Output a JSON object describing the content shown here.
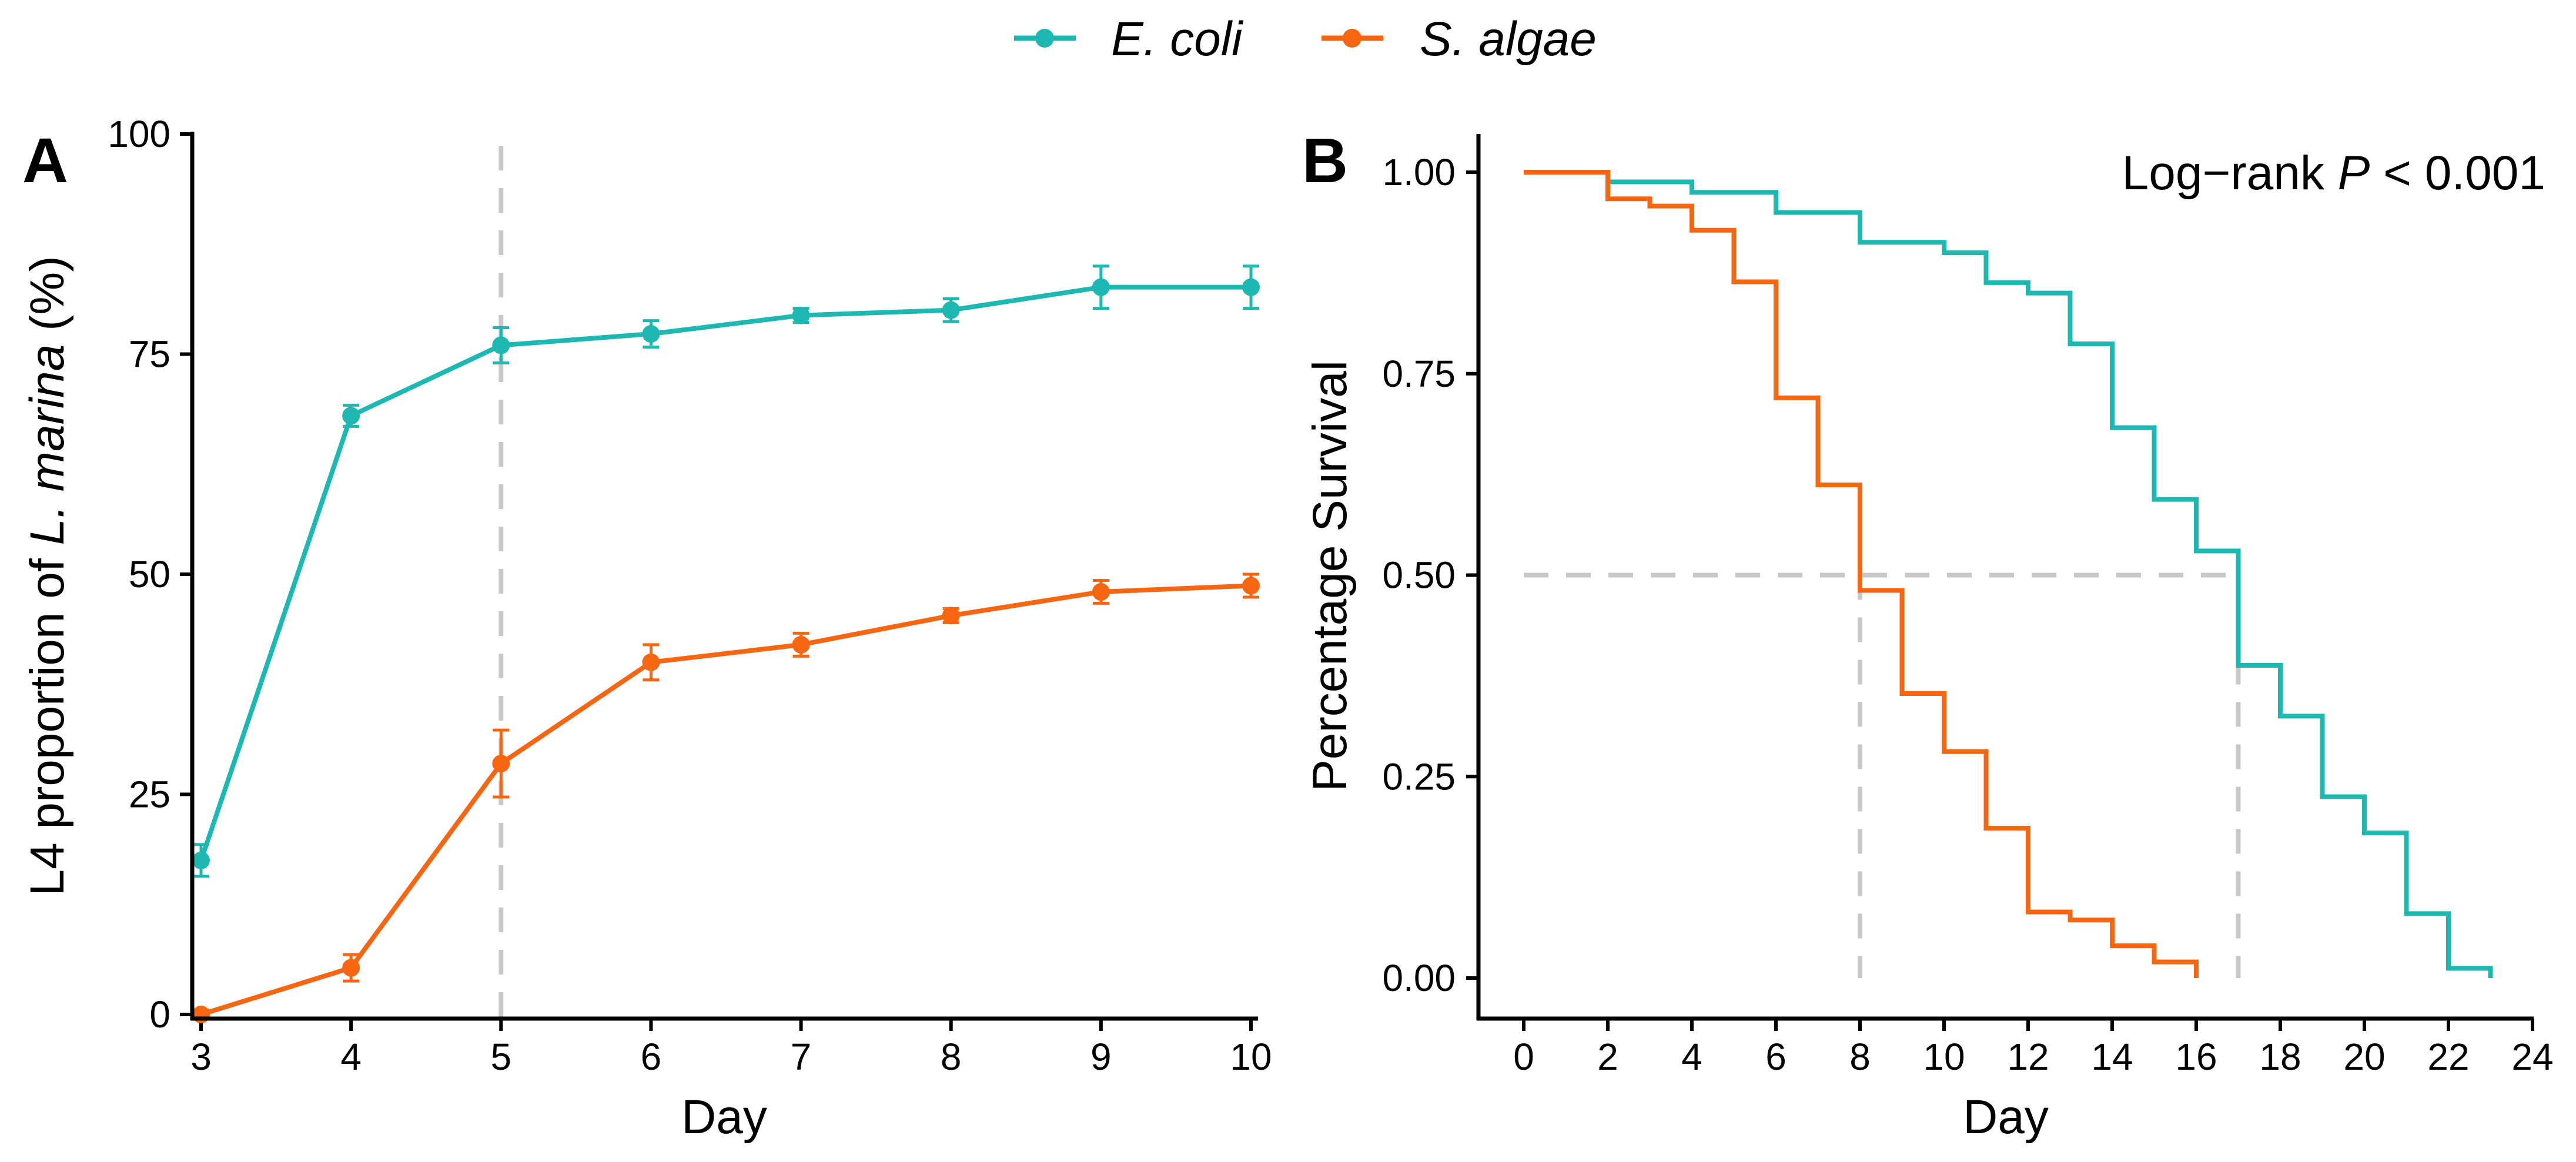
{
  "legend": {
    "series": [
      {
        "name": "E. coli",
        "color": "#1cb8b1"
      },
      {
        "name": "S. algae",
        "color": "#f86612"
      }
    ]
  },
  "chart_data": [
    {
      "panel": "A",
      "type": "line",
      "xlabel": "Day",
      "ylabel_parts": [
        "L4 proportion of ",
        "L. marina",
        " (%)"
      ],
      "xlim": [
        3,
        10
      ],
      "ylim": [
        0,
        100
      ],
      "xticks": [
        3,
        4,
        5,
        6,
        7,
        8,
        9,
        10
      ],
      "yticks": [
        0,
        25,
        50,
        75,
        100
      ],
      "x": [
        3,
        4,
        5,
        6,
        7,
        8,
        9,
        10
      ],
      "series": [
        {
          "name": "E. coli",
          "values": [
            17.5,
            68,
            76,
            77.3,
            79.4,
            80,
            82.6,
            82.6
          ],
          "errors": [
            1.8,
            1.2,
            2.0,
            1.5,
            0.8,
            1.3,
            2.4,
            2.4
          ]
        },
        {
          "name": "S. algae",
          "values": [
            0,
            5.3,
            28.5,
            40,
            42,
            45.3,
            48,
            48.7
          ],
          "errors": [
            0.5,
            1.5,
            3.8,
            2.0,
            1.3,
            0.8,
            1.3,
            1.3
          ]
        }
      ],
      "reference_lines": [
        {
          "axis": "x",
          "value": 5
        }
      ],
      "grid": false
    },
    {
      "panel": "B",
      "type": "line",
      "style": "step",
      "xlabel": "Day",
      "ylabel": "Percentage Survival",
      "xlim": [
        0,
        24
      ],
      "ylim": [
        0,
        1
      ],
      "xticks": [
        0,
        2,
        4,
        6,
        8,
        10,
        12,
        14,
        16,
        18,
        20,
        22,
        24
      ],
      "yticks": [
        0.0,
        0.25,
        0.5,
        0.75,
        1.0
      ],
      "ytick_labels": [
        "0.00",
        "0.25",
        "0.50",
        "0.75",
        "1.00"
      ],
      "annotation_parts": [
        "Log−rank ",
        "P",
        " < 0.001"
      ],
      "series": [
        {
          "name": "E. coli",
          "x": [
            0,
            2,
            4,
            6,
            8,
            10,
            11,
            12,
            13,
            14,
            15,
            16,
            17,
            18,
            19,
            20,
            21,
            22,
            23
          ],
          "values": [
            1.0,
            0.988,
            0.975,
            0.95,
            0.913,
            0.9,
            0.863,
            0.85,
            0.787,
            0.683,
            0.594,
            0.53,
            0.388,
            0.325,
            0.225,
            0.18,
            0.08,
            0.012,
            0.0
          ]
        },
        {
          "name": "S. algae",
          "x": [
            0,
            2,
            3,
            4,
            5,
            6,
            7,
            8,
            9,
            10,
            11,
            12,
            13,
            14,
            15,
            16
          ],
          "values": [
            1.0,
            0.967,
            0.958,
            0.928,
            0.864,
            0.72,
            0.612,
            0.481,
            0.353,
            0.281,
            0.186,
            0.082,
            0.072,
            0.04,
            0.02,
            0.0
          ]
        }
      ],
      "reference_lines": [
        {
          "axis": "y",
          "value": 0.5,
          "from": 0,
          "to": 17
        },
        {
          "axis": "x",
          "value": 8,
          "from": 0,
          "to": 0.5
        },
        {
          "axis": "x",
          "value": 17,
          "from": 0,
          "to": 0.5
        }
      ],
      "grid": false
    }
  ]
}
